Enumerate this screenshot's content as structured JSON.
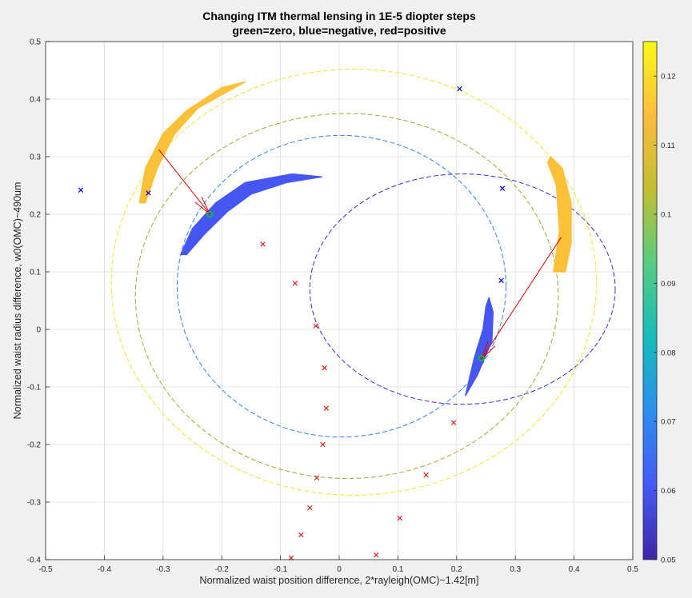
{
  "chart_data": {
    "type": "scatter",
    "title": "Changing ITM thermal lensing in 1E-5 diopter steps",
    "subtitle": "green=zero, blue=negative, red=positive",
    "xlabel": "Normalized waist position difference, 2*rayleigh(OMC)~1.42[m]",
    "ylabel": "Normalized waist radius difference, w0(OMC)~490um",
    "xlim": [
      -0.5,
      0.5
    ],
    "ylim": [
      -0.4,
      0.5
    ],
    "xticks": [
      -0.5,
      -0.4,
      -0.3,
      -0.2,
      -0.1,
      0,
      0.1,
      0.2,
      0.3,
      0.4,
      0.5
    ],
    "yticks": [
      -0.4,
      -0.3,
      -0.2,
      -0.1,
      0,
      0.1,
      0.2,
      0.3,
      0.4,
      0.5
    ],
    "grid": true,
    "colorbar": {
      "range": [
        0.05,
        0.125
      ],
      "ticks": [
        0.05,
        0.06,
        0.07,
        0.08,
        0.09,
        0.1,
        0.11,
        0.12
      ],
      "colors": [
        "#3e26a8",
        "#4659f7",
        "#2c8ef0",
        "#14bdbb",
        "#57cc81",
        "#c1bf30",
        "#fcbc3c",
        "#f9f915"
      ]
    },
    "colors": {
      "blue_marker": "#0000cc",
      "red_marker": "#e02020",
      "green_marker": "#00cc33",
      "arrow": "#e00000"
    },
    "dashed_ellipses": [
      {
        "cx": 0.21,
        "cy": 0.07,
        "rx": 0.26,
        "ry": 0.2,
        "color": "#3530d0"
      },
      {
        "cx": 0.004,
        "cy": 0.075,
        "rx": 0.28,
        "ry": 0.262,
        "color": "#3a80e8"
      },
      {
        "cx": 0.013,
        "cy": 0.058,
        "rx": 0.36,
        "ry": 0.317,
        "color": "#a0a836"
      },
      {
        "cx": 0.025,
        "cy": 0.082,
        "rx": 0.413,
        "ry": 0.37,
        "color": "#e8e830"
      }
    ],
    "regions": [
      {
        "color_value": 0.115,
        "points": [
          [
            -0.34,
            0.22
          ],
          [
            -0.33,
            0.28
          ],
          [
            -0.3,
            0.34
          ],
          [
            -0.26,
            0.38
          ],
          [
            -0.2,
            0.42
          ],
          [
            -0.16,
            0.43
          ],
          [
            -0.24,
            0.385
          ],
          [
            -0.28,
            0.34
          ],
          [
            -0.31,
            0.28
          ],
          [
            -0.33,
            0.22
          ]
        ]
      },
      {
        "color_value": 0.06,
        "points": [
          [
            -0.27,
            0.13
          ],
          [
            -0.25,
            0.175
          ],
          [
            -0.21,
            0.22
          ],
          [
            -0.16,
            0.255
          ],
          [
            -0.08,
            0.27
          ],
          [
            -0.03,
            0.265
          ],
          [
            -0.09,
            0.255
          ],
          [
            -0.15,
            0.235
          ],
          [
            -0.19,
            0.205
          ],
          [
            -0.23,
            0.165
          ],
          [
            -0.26,
            0.13
          ]
        ]
      },
      {
        "color_value": 0.115,
        "points": [
          [
            0.36,
            0.3
          ],
          [
            0.38,
            0.28
          ],
          [
            0.395,
            0.22
          ],
          [
            0.395,
            0.15
          ],
          [
            0.385,
            0.1
          ],
          [
            0.365,
            0.1
          ],
          [
            0.375,
            0.17
          ],
          [
            0.37,
            0.25
          ],
          [
            0.355,
            0.29
          ]
        ]
      },
      {
        "color_value": 0.06,
        "points": [
          [
            0.255,
            0.055
          ],
          [
            0.262,
            0.03
          ],
          [
            0.26,
            -0.02
          ],
          [
            0.235,
            -0.08
          ],
          [
            0.215,
            -0.115
          ],
          [
            0.23,
            -0.05
          ],
          [
            0.245,
            0.0
          ],
          [
            0.25,
            0.04
          ]
        ]
      }
    ],
    "arrows": [
      {
        "from": [
          -0.307,
          0.312
        ],
        "to": [
          -0.22,
          0.2
        ]
      },
      {
        "from": [
          0.378,
          0.16
        ],
        "to": [
          0.242,
          -0.052
        ]
      }
    ],
    "green_markers": [
      [
        -0.22,
        0.2
      ],
      [
        0.242,
        -0.05
      ]
    ],
    "blue_markers": [
      [
        -0.44,
        0.242
      ],
      [
        -0.325,
        0.237
      ],
      [
        0.205,
        0.418
      ],
      [
        0.278,
        0.245
      ],
      [
        0.276,
        0.085
      ]
    ],
    "red_markers": [
      [
        -0.13,
        0.148
      ],
      [
        -0.075,
        0.08
      ],
      [
        -0.04,
        0.006
      ],
      [
        -0.025,
        -0.067
      ],
      [
        -0.022,
        -0.137
      ],
      [
        -0.028,
        -0.2
      ],
      [
        -0.038,
        -0.258
      ],
      [
        -0.05,
        -0.31
      ],
      [
        -0.065,
        -0.357
      ],
      [
        -0.082,
        -0.397
      ],
      [
        0.063,
        -0.392
      ],
      [
        0.103,
        -0.328
      ],
      [
        0.148,
        -0.253
      ],
      [
        0.195,
        -0.162
      ]
    ]
  }
}
